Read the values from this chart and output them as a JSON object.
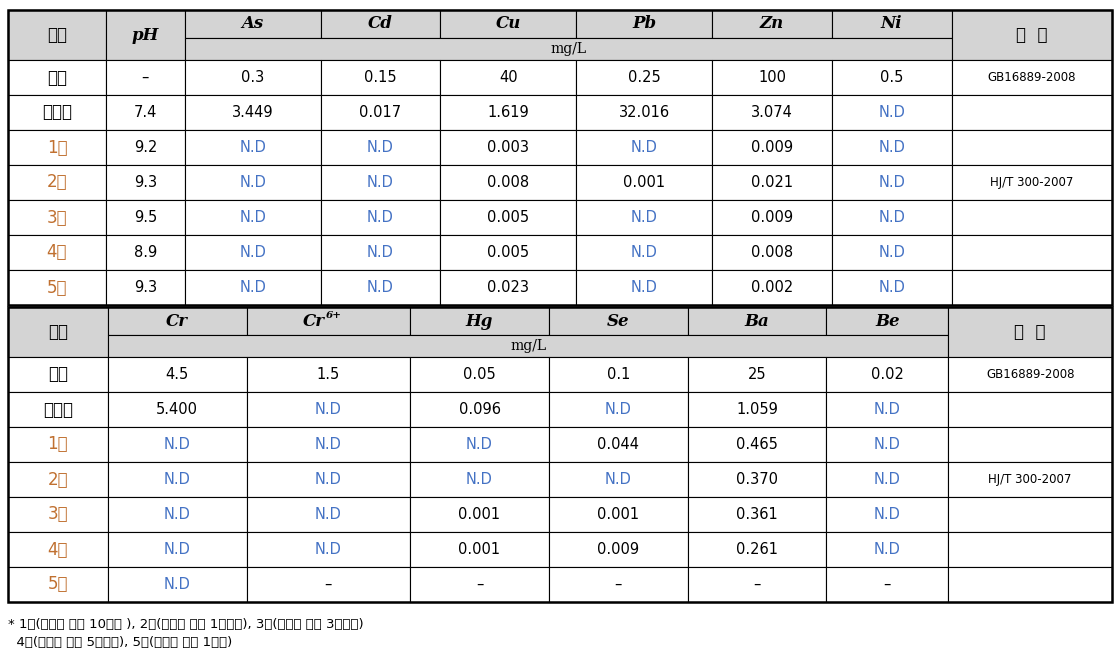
{
  "background_color": "#ffffff",
  "header_bg": "#d4d4d4",
  "border_color": "#000000",
  "white": "#ffffff",
  "nd_color": "#4472c4",
  "row_label_color": "#c07030",
  "black": "#000000",
  "dark_red": "#c00000",
  "table1": {
    "col_widths_raw": [
      72,
      58,
      100,
      88,
      100,
      100,
      88,
      88,
      118
    ],
    "element_headers": [
      "As",
      "Cd",
      "Cu",
      "Pb",
      "Zn",
      "Ni"
    ],
    "rows": [
      [
        "기준",
        "–",
        "0.3",
        "0.15",
        "40",
        "0.25",
        "100",
        "0.5",
        "GB16889-2008"
      ],
      [
        "처리전",
        "7.4",
        "3.449",
        "0.017",
        "1.619",
        "32.016",
        "3.074",
        "N.D",
        ""
      ],
      [
        "1회",
        "9.2",
        "N.D",
        "N.D",
        "0.003",
        "N.D",
        "0.009",
        "N.D",
        ""
      ],
      [
        "2회",
        "9.3",
        "N.D",
        "N.D",
        "0.008",
        "0.001",
        "0.021",
        "N.D",
        "HJ/T 300-2007"
      ],
      [
        "3회",
        "9.5",
        "N.D",
        "N.D",
        "0.005",
        "N.D",
        "0.009",
        "N.D",
        ""
      ],
      [
        "4회",
        "8.9",
        "N.D",
        "N.D",
        "0.005",
        "N.D",
        "0.008",
        "N.D",
        ""
      ],
      [
        "5회",
        "9.3",
        "N.D",
        "N.D",
        "0.023",
        "N.D",
        "0.002",
        "N.D",
        ""
      ]
    ]
  },
  "table2": {
    "col_widths_raw": [
      72,
      100,
      118,
      100,
      100,
      100,
      88,
      118
    ],
    "element_headers": [
      "Cr",
      "Cr^6+",
      "Hg",
      "Se",
      "Ba",
      "Be"
    ],
    "rows": [
      [
        "기준",
        "4.5",
        "1.5",
        "0.05",
        "0.1",
        "25",
        "0.02",
        "GB16889-2008"
      ],
      [
        "처리전",
        "5.400",
        "N.D",
        "0.096",
        "N.D",
        "1.059",
        "N.D",
        ""
      ],
      [
        "1회",
        "N.D",
        "N.D",
        "N.D",
        "0.044",
        "0.465",
        "N.D",
        ""
      ],
      [
        "2회",
        "N.D",
        "N.D",
        "N.D",
        "N.D",
        "0.370",
        "N.D",
        "HJ/T 300-2007"
      ],
      [
        "3회",
        "N.D",
        "N.D",
        "0.001",
        "0.001",
        "0.361",
        "N.D",
        ""
      ],
      [
        "4회",
        "N.D",
        "N.D",
        "0.001",
        "0.009",
        "0.261",
        "N.D",
        ""
      ],
      [
        "5회",
        "N.D",
        "–",
        "–",
        "–",
        "–",
        "–",
        ""
      ]
    ]
  },
  "footnote1": "* 1회(안정화 처리 10일후 ), 2회(안정화 처리 1개월후), 3회(안정화 처리 3개월후)",
  "footnote2": "  4회(안정화 처리 5개월후), 5회(안정화 처리 1년후)"
}
